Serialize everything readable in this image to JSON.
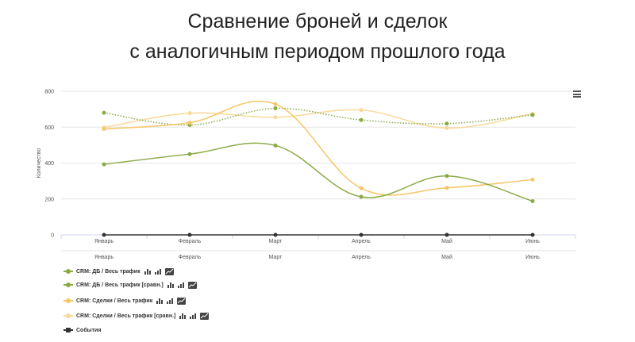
{
  "title": {
    "line1": "Сравнение броней и сделок",
    "line2": "с аналогичным периодом прошлого года"
  },
  "menu_icon": "hamburger-icon",
  "colors": {
    "green": "#8aaa46",
    "yellow": "#f5c666",
    "black": "#333333",
    "grid": "#e6e6e6"
  },
  "chart_data": {
    "type": "line",
    "ylabel": "Количество",
    "ylim": [
      0,
      800
    ],
    "yticks": [
      "0",
      "200",
      "400",
      "600",
      "800"
    ],
    "categories": [
      "Январь",
      "Февраль",
      "Март",
      "Апрель",
      "Май",
      "Июнь"
    ],
    "secondary_categories": [
      "Январь",
      "Февраль",
      "Март",
      "Апрель",
      "Май",
      "Июнь"
    ],
    "grid": true,
    "legend_position": "bottom-left",
    "series": [
      {
        "name": "CRM: ДБ / Весь трафик",
        "values": [
          393,
          450,
          498,
          212,
          328,
          188
        ],
        "color": "#8aaa46",
        "dash": "solid"
      },
      {
        "name": "CRM: ДБ / Весь трафик [сравн.]",
        "values": [
          680,
          612,
          705,
          640,
          620,
          668
        ],
        "color": "#8aaa46",
        "dash": "dotted"
      },
      {
        "name": "CRM: Сделки / Весь трафик",
        "values": [
          590,
          625,
          728,
          260,
          262,
          308
        ],
        "color": "#f5c666",
        "dash": "solid"
      },
      {
        "name": "CRM: Сделки / Весь трафик [сравн.]",
        "values": [
          598,
          678,
          655,
          695,
          595,
          675
        ],
        "color": "#f9d99a",
        "dash": "solid"
      },
      {
        "name": "События",
        "values": [
          0,
          0,
          0,
          0,
          0,
          0
        ],
        "color": "#333333",
        "dash": "solid"
      }
    ]
  },
  "legend": [
    {
      "label": "CRM: ДБ / Весь трафик",
      "symbol": "dot",
      "color": "#8aaa46",
      "icons": [
        "bar-icon",
        "column-icon",
        "area-icon"
      ]
    },
    {
      "label": "CRM: ДБ / Весь трафик [сравн.]",
      "symbol": "dot",
      "color": "#8aaa46",
      "icons": [
        "bar-icon",
        "column-icon",
        "area-icon"
      ]
    },
    {
      "label": "CRM: Сделки / Весь трафик",
      "symbol": "dot",
      "color": "#f5c666",
      "icons": [
        "bar-icon",
        "column-icon",
        "area-icon"
      ]
    },
    {
      "label": "CRM: Сделки / Весь трафик [сравн.]",
      "symbol": "dot",
      "color": "#f9d99a",
      "icons": [
        "bar-icon",
        "column-icon",
        "area-icon"
      ]
    },
    {
      "label": "События",
      "symbol": "square",
      "color": "#333333",
      "icons": []
    }
  ]
}
